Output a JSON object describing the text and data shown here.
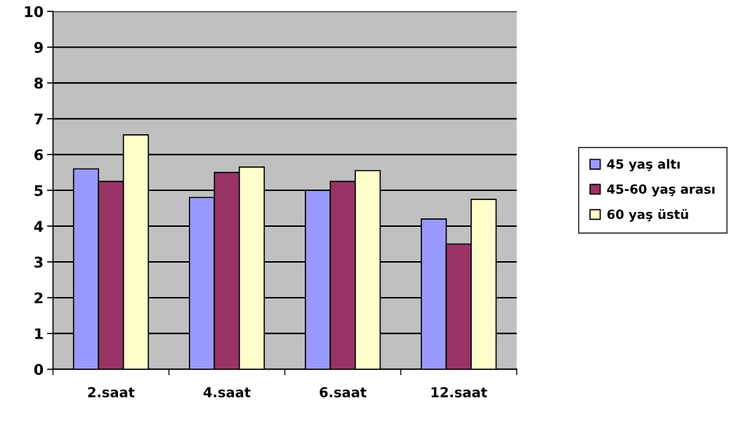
{
  "chart_data": {
    "type": "bar",
    "categories": [
      "2.saat",
      "4.saat",
      "6.saat",
      "12.saat"
    ],
    "series": [
      {
        "name": "45 yaş altı",
        "color": "#9999ff",
        "values": [
          5.6,
          4.8,
          5.0,
          4.2
        ]
      },
      {
        "name": "45-60 yaş arası",
        "color": "#993366",
        "values": [
          5.25,
          5.5,
          5.25,
          3.5
        ]
      },
      {
        "name": "60 yaş üstü",
        "color": "#ffffcc",
        "values": [
          6.55,
          5.65,
          5.55,
          4.75
        ]
      }
    ],
    "ylim": [
      0,
      10
    ],
    "yticks": [
      0,
      1,
      2,
      3,
      4,
      5,
      6,
      7,
      8,
      9,
      10
    ],
    "grid": "y",
    "legend": "right"
  }
}
